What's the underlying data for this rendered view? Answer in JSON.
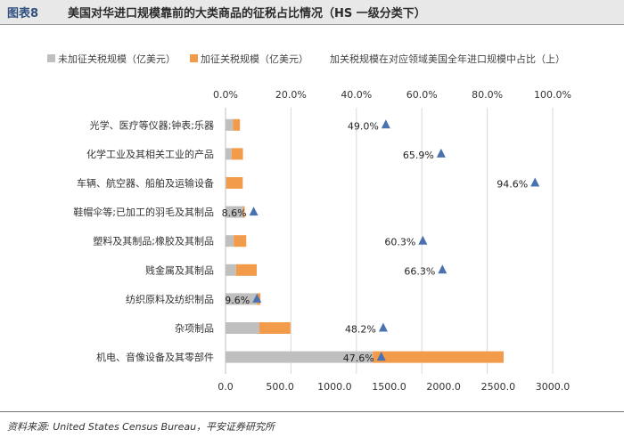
{
  "header": {
    "fig_label": "图表8",
    "title": "美国对华进口规模靠前的大类商品的征税占比情况（HS 一级分类下）"
  },
  "footer": {
    "source": "资料来源: United States Census Bureau，平安证券研究所"
  },
  "chart_data": {
    "type": "bar",
    "orientation": "horizontal",
    "stacked": true,
    "categories": [
      "光学、医疗等仪器;钟表;乐器",
      "化学工业及其相关工业的产品",
      "车辆、航空器、船舶及运输设备",
      "鞋帽伞等;已加工的羽毛及其制品",
      "塑料及其制品;橡胶及其制品",
      "贱金属及其制品",
      "纺织原料及纺织制品",
      "杂项制品",
      "机电、音像设备及其零部件"
    ],
    "series": [
      {
        "name": "未加征关税规模（亿美元）",
        "values": [
          67,
          55,
          8,
          160,
          75,
          96,
          290,
          310,
          1350
        ],
        "color": "#bfbfbf"
      },
      {
        "name": "加征关税规模（亿美元）",
        "values": [
          65,
          105,
          150,
          15,
          115,
          190,
          30,
          285,
          1200
        ],
        "color": "#f29b4b"
      },
      {
        "name": "加关税规模在对应领域美国全年进口规模中占比（上）",
        "values": [
          49.0,
          65.9,
          94.6,
          8.6,
          60.3,
          66.3,
          9.6,
          48.2,
          47.6
        ],
        "labels": [
          "49.0%",
          "65.9%",
          "94.6%",
          "8.6%",
          "60.3%",
          "66.3%",
          "9.6%",
          "48.2%",
          "47.6%"
        ],
        "color": "#4a72b0",
        "axis": "top"
      }
    ],
    "bottom_axis": {
      "ticks": [
        "0.0",
        "500.0",
        "1000.0",
        "1500.0",
        "2000.0",
        "2500.0",
        "3000.0"
      ],
      "range": [
        0,
        3000
      ]
    },
    "top_axis": {
      "ticks": [
        "0.0%",
        "20.0%",
        "40.0%",
        "60.0%",
        "80.0%",
        "100.0%"
      ],
      "range": [
        0,
        100
      ]
    },
    "grid": true,
    "legend": "top"
  }
}
